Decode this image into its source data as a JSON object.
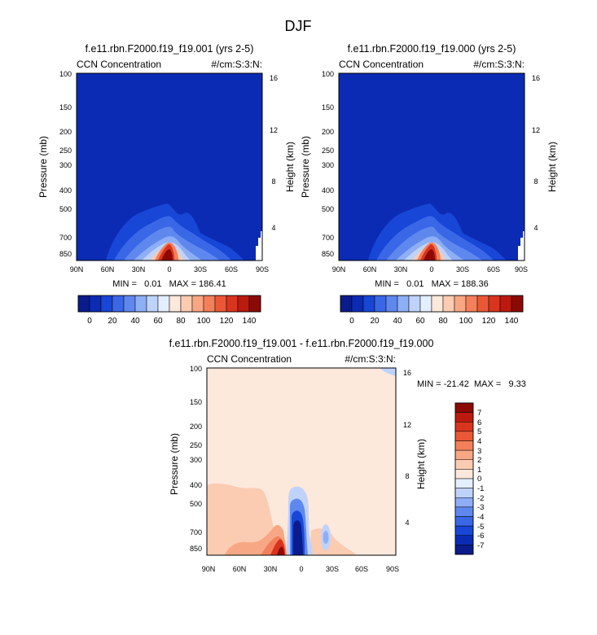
{
  "title": "DJF",
  "chart_data": [
    {
      "type": "heatmap",
      "title": "f.e11.rbn.F2000.f19_f19.001 (yrs 2-5)",
      "left_label": "CCN Concentration",
      "right_label": "#/cm:S:3:N:",
      "ylabel": "Pressure (mb)",
      "y2label": "Height (km)",
      "x_ticks": [
        "90N",
        "60N",
        "30N",
        "0",
        "30S",
        "60S",
        "90S"
      ],
      "y_ticks": [
        "100",
        "150",
        "200",
        "250",
        "300",
        "400",
        "500",
        "700",
        "850"
      ],
      "y2_ticks": [
        "16",
        "12",
        "8",
        "4"
      ],
      "stats": "MIN =   0.01   MAX = 186.41",
      "colorbar": {
        "labels": [
          "0",
          "20",
          "40",
          "60",
          "80",
          "100",
          "120",
          "140"
        ],
        "colors": [
          "#0a1b8c",
          "#0b2bb5",
          "#1846d6",
          "#3a67e6",
          "#5f88ef",
          "#8eaef5",
          "#bfd3fa",
          "#e4eefd",
          "#fde8dc",
          "#fbcbb2",
          "#f8a784",
          "#f3805b",
          "#ea5836",
          "#d9341e",
          "#bc1a0f",
          "#8c0a05"
        ]
      }
    },
    {
      "type": "heatmap",
      "title": "f.e11.rbn.F2000.f19_f19.000 (yrs 2-5)",
      "left_label": "CCN Concentration",
      "right_label": "#/cm:S:3:N:",
      "ylabel": "Pressure (mb)",
      "y2label": "Height (km)",
      "x_ticks": [
        "90N",
        "60N",
        "30N",
        "0",
        "30S",
        "60S",
        "90S"
      ],
      "y_ticks": [
        "100",
        "150",
        "200",
        "250",
        "300",
        "400",
        "500",
        "700",
        "850"
      ],
      "y2_ticks": [
        "16",
        "12",
        "8",
        "4"
      ],
      "stats": "MIN =   0.01   MAX = 188.36",
      "colorbar": {
        "labels": [
          "0",
          "20",
          "40",
          "60",
          "80",
          "100",
          "120",
          "140"
        ],
        "colors": [
          "#0a1b8c",
          "#0b2bb5",
          "#1846d6",
          "#3a67e6",
          "#5f88ef",
          "#8eaef5",
          "#bfd3fa",
          "#e4eefd",
          "#fde8dc",
          "#fbcbb2",
          "#f8a784",
          "#f3805b",
          "#ea5836",
          "#d9341e",
          "#bc1a0f",
          "#8c0a05"
        ]
      }
    },
    {
      "type": "heatmap",
      "title": "f.e11.rbn.F2000.f19_f19.001 - f.e11.rbn.F2000.f19_f19.000",
      "left_label": "CCN Concentration",
      "right_label": "#/cm:S:3:N:",
      "ylabel": "Pressure (mb)",
      "y2label": "Height (km)",
      "x_ticks": [
        "90N",
        "60N",
        "30N",
        "0",
        "30S",
        "60S",
        "90S"
      ],
      "y_ticks": [
        "100",
        "150",
        "200",
        "250",
        "300",
        "400",
        "500",
        "700",
        "850"
      ],
      "y2_ticks": [
        "16",
        "12",
        "8",
        "4"
      ],
      "stats": "MIN = -21.42  MAX =   9.33",
      "colorbar": {
        "labels": [
          "7",
          "6",
          "5",
          "4",
          "3",
          "2",
          "1",
          "0",
          "-1",
          "-2",
          "-3",
          "-4",
          "-5",
          "-6",
          "-7"
        ],
        "colors": [
          "#8c0a05",
          "#bc1a0f",
          "#d9341e",
          "#ea5836",
          "#f3805b",
          "#f8a784",
          "#fbcbb2",
          "#fde8dc",
          "#e4eefd",
          "#bfd3fa",
          "#8eaef5",
          "#5f88ef",
          "#3a67e6",
          "#1846d6",
          "#0b2bb5",
          "#0a1b8c"
        ]
      }
    }
  ]
}
